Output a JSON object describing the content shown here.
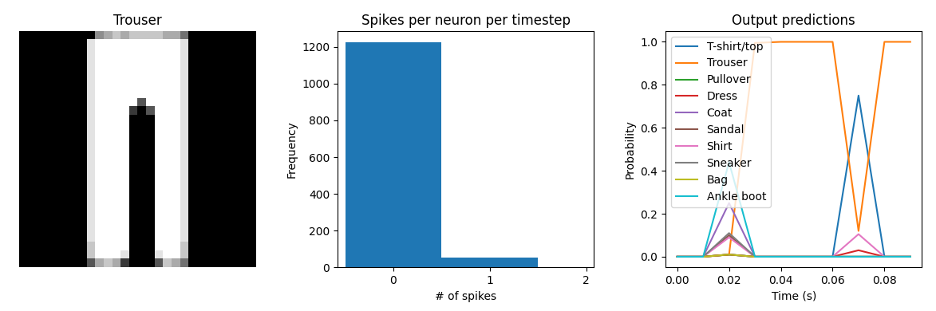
{
  "chart_data": [
    {
      "type": "image",
      "title": "Trouser",
      "cmap_range": [
        0,
        9
      ],
      "cells": [
        [
          0,
          0,
          0,
          0,
          0,
          0,
          0,
          0,
          0,
          5,
          6,
          7,
          6,
          7,
          7,
          7,
          7,
          6,
          6,
          4,
          0,
          0,
          0,
          0,
          0,
          0,
          0,
          0
        ],
        [
          0,
          0,
          0,
          0,
          0,
          0,
          0,
          0,
          8,
          9,
          9,
          9,
          9,
          9,
          9,
          9,
          9,
          9,
          9,
          8,
          0,
          0,
          0,
          0,
          0,
          0,
          0,
          0
        ],
        [
          0,
          0,
          0,
          0,
          0,
          0,
          0,
          0,
          8,
          9,
          9,
          9,
          9,
          9,
          9,
          9,
          9,
          9,
          9,
          8,
          0,
          0,
          0,
          0,
          0,
          0,
          0,
          0
        ],
        [
          0,
          0,
          0,
          0,
          0,
          0,
          0,
          0,
          8,
          9,
          9,
          9,
          9,
          9,
          9,
          9,
          9,
          9,
          9,
          8,
          0,
          0,
          0,
          0,
          0,
          0,
          0,
          0
        ],
        [
          0,
          0,
          0,
          0,
          0,
          0,
          0,
          0,
          8,
          9,
          9,
          9,
          9,
          9,
          9,
          9,
          9,
          9,
          9,
          8,
          0,
          0,
          0,
          0,
          0,
          0,
          0,
          0
        ],
        [
          0,
          0,
          0,
          0,
          0,
          0,
          0,
          0,
          8,
          9,
          9,
          9,
          9,
          9,
          9,
          9,
          9,
          9,
          9,
          8,
          0,
          0,
          0,
          0,
          0,
          0,
          0,
          0
        ],
        [
          0,
          0,
          0,
          0,
          0,
          0,
          0,
          0,
          8,
          9,
          9,
          9,
          9,
          9,
          9,
          9,
          9,
          9,
          9,
          8,
          0,
          0,
          0,
          0,
          0,
          0,
          0,
          0
        ],
        [
          0,
          0,
          0,
          0,
          0,
          0,
          0,
          0,
          8,
          9,
          9,
          9,
          9,
          9,
          9,
          9,
          9,
          9,
          9,
          8,
          0,
          0,
          0,
          0,
          0,
          0,
          0,
          0
        ],
        [
          0,
          0,
          0,
          0,
          0,
          0,
          0,
          0,
          8,
          9,
          9,
          9,
          9,
          9,
          3,
          9,
          9,
          9,
          9,
          8,
          0,
          0,
          0,
          0,
          0,
          0,
          0,
          0
        ],
        [
          0,
          0,
          0,
          0,
          0,
          0,
          0,
          0,
          8,
          9,
          9,
          9,
          9,
          2,
          0,
          3,
          9,
          9,
          9,
          8,
          0,
          0,
          0,
          0,
          0,
          0,
          0,
          0
        ],
        [
          0,
          0,
          0,
          0,
          0,
          0,
          0,
          0,
          8,
          9,
          9,
          9,
          9,
          0,
          0,
          0,
          9,
          9,
          9,
          8,
          0,
          0,
          0,
          0,
          0,
          0,
          0,
          0
        ],
        [
          0,
          0,
          0,
          0,
          0,
          0,
          0,
          0,
          8,
          9,
          9,
          9,
          9,
          0,
          0,
          0,
          9,
          9,
          9,
          8,
          0,
          0,
          0,
          0,
          0,
          0,
          0,
          0
        ],
        [
          0,
          0,
          0,
          0,
          0,
          0,
          0,
          0,
          8,
          9,
          9,
          9,
          9,
          0,
          0,
          0,
          9,
          9,
          9,
          8,
          0,
          0,
          0,
          0,
          0,
          0,
          0,
          0
        ],
        [
          0,
          0,
          0,
          0,
          0,
          0,
          0,
          0,
          8,
          9,
          9,
          9,
          9,
          0,
          0,
          0,
          9,
          9,
          9,
          8,
          0,
          0,
          0,
          0,
          0,
          0,
          0,
          0
        ],
        [
          0,
          0,
          0,
          0,
          0,
          0,
          0,
          0,
          8,
          9,
          9,
          9,
          9,
          0,
          0,
          0,
          9,
          9,
          9,
          8,
          0,
          0,
          0,
          0,
          0,
          0,
          0,
          0
        ],
        [
          0,
          0,
          0,
          0,
          0,
          0,
          0,
          0,
          8,
          9,
          9,
          9,
          9,
          0,
          0,
          0,
          9,
          9,
          9,
          8,
          0,
          0,
          0,
          0,
          0,
          0,
          0,
          0
        ],
        [
          0,
          0,
          0,
          0,
          0,
          0,
          0,
          0,
          8,
          9,
          9,
          9,
          9,
          0,
          0,
          0,
          9,
          9,
          9,
          8,
          0,
          0,
          0,
          0,
          0,
          0,
          0,
          0
        ],
        [
          0,
          0,
          0,
          0,
          0,
          0,
          0,
          0,
          8,
          9,
          9,
          9,
          9,
          0,
          0,
          0,
          9,
          9,
          9,
          8,
          0,
          0,
          0,
          0,
          0,
          0,
          0,
          0
        ],
        [
          0,
          0,
          0,
          0,
          0,
          0,
          0,
          0,
          8,
          9,
          9,
          9,
          9,
          0,
          0,
          0,
          9,
          9,
          9,
          8,
          0,
          0,
          0,
          0,
          0,
          0,
          0,
          0
        ],
        [
          0,
          0,
          0,
          0,
          0,
          0,
          0,
          0,
          8,
          9,
          9,
          9,
          9,
          0,
          0,
          0,
          9,
          9,
          9,
          8,
          0,
          0,
          0,
          0,
          0,
          0,
          0,
          0
        ],
        [
          0,
          0,
          0,
          0,
          0,
          0,
          0,
          0,
          8,
          9,
          9,
          9,
          9,
          0,
          0,
          0,
          9,
          9,
          9,
          8,
          0,
          0,
          0,
          0,
          0,
          0,
          0,
          0
        ],
        [
          0,
          0,
          0,
          0,
          0,
          0,
          0,
          0,
          8,
          9,
          9,
          9,
          9,
          0,
          0,
          0,
          9,
          9,
          9,
          8,
          0,
          0,
          0,
          0,
          0,
          0,
          0,
          0
        ],
        [
          0,
          0,
          0,
          0,
          0,
          0,
          0,
          0,
          8,
          9,
          9,
          9,
          9,
          0,
          0,
          0,
          9,
          9,
          9,
          8,
          0,
          0,
          0,
          0,
          0,
          0,
          0,
          0
        ],
        [
          0,
          0,
          0,
          0,
          0,
          0,
          0,
          0,
          8,
          9,
          9,
          9,
          9,
          0,
          0,
          0,
          9,
          9,
          9,
          8,
          0,
          0,
          0,
          0,
          0,
          0,
          0,
          0
        ],
        [
          0,
          0,
          0,
          0,
          0,
          0,
          0,
          0,
          8,
          9,
          9,
          9,
          9,
          0,
          0,
          0,
          9,
          9,
          9,
          8,
          0,
          0,
          0,
          0,
          0,
          0,
          0,
          0
        ],
        [
          0,
          0,
          0,
          0,
          0,
          0,
          0,
          0,
          7,
          9,
          9,
          9,
          9,
          0,
          0,
          0,
          9,
          9,
          9,
          7,
          0,
          0,
          0,
          0,
          0,
          0,
          0,
          0
        ],
        [
          0,
          0,
          0,
          0,
          0,
          0,
          0,
          0,
          7,
          9,
          9,
          9,
          8,
          0,
          0,
          0,
          8,
          9,
          9,
          7,
          0,
          0,
          0,
          0,
          0,
          0,
          0,
          0
        ],
        [
          0,
          0,
          0,
          0,
          0,
          0,
          0,
          0,
          3,
          6,
          7,
          6,
          2,
          0,
          0,
          0,
          3,
          7,
          6,
          4,
          0,
          0,
          0,
          0,
          0,
          0,
          0,
          0
        ]
      ]
    },
    {
      "type": "histogram",
      "title": "Spikes per neuron per timestep",
      "x_label": "# of spikes",
      "y_label": "Frequency",
      "bins": [
        -0.5,
        0.5,
        1.5
      ],
      "counts": [
        1225,
        55
      ],
      "color": "#1f77b4",
      "xlim": [
        -0.58,
        2.08
      ],
      "xticks": [
        0,
        1,
        2
      ],
      "ylim": [
        0,
        1285
      ],
      "yticks": [
        0,
        200,
        400,
        600,
        800,
        1000,
        1200
      ]
    },
    {
      "type": "line",
      "title": "Output predictions",
      "x_label": "Time (s)",
      "y_label": "Probability",
      "legend": "upper left",
      "x": [
        0.0,
        0.01,
        0.02,
        0.03,
        0.04,
        0.05,
        0.06,
        0.07,
        0.08,
        0.09
      ],
      "xlim": [
        -0.0045,
        0.0945
      ],
      "xticks": [
        {
          "value": 0.0,
          "label": "0.00"
        },
        {
          "value": 0.02,
          "label": "0.02"
        },
        {
          "value": 0.04,
          "label": "0.04"
        },
        {
          "value": 0.06,
          "label": "0.06"
        },
        {
          "value": 0.08,
          "label": "0.08"
        }
      ],
      "ylim": [
        -0.05,
        1.05
      ],
      "yticks": [
        0.0,
        0.2,
        0.4,
        0.6,
        0.8,
        1.0
      ],
      "series": [
        {
          "name": "T-shirt/top",
          "color": "#1f77b4",
          "values": [
            0,
            0,
            0.01,
            0,
            0,
            0,
            0,
            0.75,
            0,
            0
          ]
        },
        {
          "name": "Trouser",
          "color": "#ff7f0e",
          "values": [
            0,
            0,
            0.01,
            0.995,
            1.0,
            1.0,
            1.0,
            0.12,
            1.0,
            1.0
          ]
        },
        {
          "name": "Pullover",
          "color": "#2ca02c",
          "values": [
            0,
            0,
            0.01,
            0,
            0,
            0,
            0,
            0,
            0,
            0
          ]
        },
        {
          "name": "Dress",
          "color": "#d62728",
          "values": [
            0,
            0,
            0.01,
            0,
            0,
            0,
            0,
            0.03,
            0,
            0
          ]
        },
        {
          "name": "Coat",
          "color": "#9467bd",
          "values": [
            0,
            0,
            0.25,
            0,
            0,
            0,
            0,
            0,
            0,
            0
          ]
        },
        {
          "name": "Sandal",
          "color": "#8c564b",
          "values": [
            0,
            0,
            0.1,
            0,
            0,
            0,
            0,
            0,
            0,
            0
          ]
        },
        {
          "name": "Shirt",
          "color": "#e377c2",
          "values": [
            0,
            0,
            0.09,
            0,
            0,
            0,
            0,
            0.105,
            0,
            0
          ]
        },
        {
          "name": "Sneaker",
          "color": "#7f7f7f",
          "values": [
            0,
            0,
            0.11,
            0,
            0,
            0,
            0,
            0,
            0,
            0
          ]
        },
        {
          "name": "Bag",
          "color": "#bcbd22",
          "values": [
            0,
            0,
            0.01,
            0,
            0,
            0,
            0,
            0,
            0,
            0
          ]
        },
        {
          "name": "Ankle boot",
          "color": "#17becf",
          "values": [
            0,
            0,
            0.44,
            0,
            0,
            0,
            0,
            0,
            0,
            0
          ]
        }
      ]
    }
  ]
}
